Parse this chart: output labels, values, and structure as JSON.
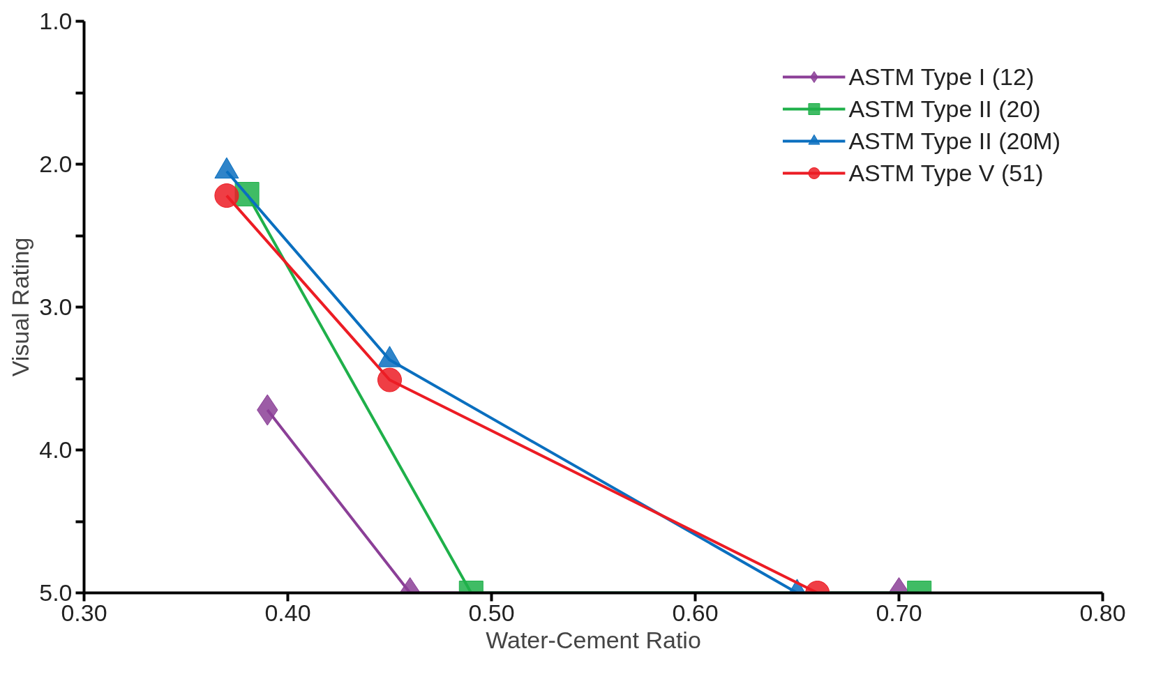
{
  "chart_data": {
    "type": "line",
    "xlabel": "Water-Cement Ratio",
    "ylabel": "Visual Rating",
    "xlim": [
      0.3,
      0.8
    ],
    "xticks": [
      {
        "value": 0.3,
        "label": "0.30"
      },
      {
        "value": 0.4,
        "label": "0.40"
      },
      {
        "value": 0.5,
        "label": "0.50"
      },
      {
        "value": 0.6,
        "label": "0.60"
      },
      {
        "value": 0.7,
        "label": "0.70"
      },
      {
        "value": 0.8,
        "label": "0.80"
      }
    ],
    "ylim": [
      5.0,
      1.0
    ],
    "yticks": [
      {
        "value": 1,
        "label": "1.0"
      },
      {
        "value": 1.5,
        "label": null
      },
      {
        "value": 2,
        "label": "2.0"
      },
      {
        "value": 2.5,
        "label": null
      },
      {
        "value": 3,
        "label": "3.0"
      },
      {
        "value": 3.5,
        "label": null
      },
      {
        "value": 4,
        "label": "4.0"
      },
      {
        "value": 4.5,
        "label": null
      },
      {
        "value": 5,
        "label": "5.0"
      }
    ],
    "grid": false,
    "legend": "top right",
    "series": [
      {
        "name": "ASTM Type I (12)",
        "color": "#8b3f97",
        "marker": "diamond",
        "x": [
          0.39,
          0.46,
          0.7
        ],
        "values": [
          3.72,
          5.0,
          5.0
        ]
      },
      {
        "name": "ASTM Type II (20)",
        "color": "#1fb04a",
        "marker": "square",
        "x": [
          0.38,
          0.49,
          0.71
        ],
        "values": [
          2.21,
          5.0,
          5.0
        ]
      },
      {
        "name": "ASTM Type II (20M)",
        "color": "#0a6fbf",
        "marker": "triangle",
        "x": [
          0.37,
          0.45,
          0.65
        ],
        "values": [
          2.05,
          3.37,
          5.0
        ]
      },
      {
        "name": "ASTM Type V (51)",
        "color": "#ec1c24",
        "marker": "circle",
        "x": [
          0.37,
          0.45,
          0.66
        ],
        "values": [
          2.22,
          3.51,
          5.0
        ]
      }
    ]
  }
}
